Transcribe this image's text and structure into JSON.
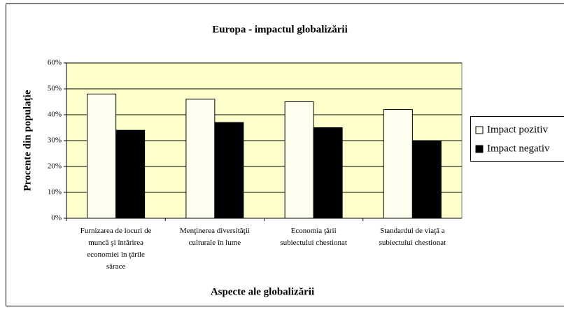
{
  "chart_data": {
    "type": "bar",
    "title": "Europa - impactul globalizării",
    "x_label": "Aspecte ale globalizării",
    "y_label": "Procente din populație",
    "categories": [
      "Furnizarea de locuri de muncă şi întărirea economiei în ţările sărace",
      "Menţinerea diversităţii culturale în lume",
      "Economia ţării subiectului chestionat",
      "Standardul de viaţă a subiectului chestionat"
    ],
    "series": [
      {
        "name": "Impact pozitiv",
        "color": "#fffff0",
        "values": [
          48,
          46,
          45,
          42
        ]
      },
      {
        "name": "Impact negativ",
        "color": "#000000",
        "values": [
          34,
          37,
          35,
          30
        ]
      }
    ],
    "ylim": [
      0,
      60
    ],
    "yticks": [
      {
        "value": 0,
        "label": "0%"
      },
      {
        "value": 10,
        "label": "10%"
      },
      {
        "value": 20,
        "label": "20%"
      },
      {
        "value": 30,
        "label": "30%"
      },
      {
        "value": 40,
        "label": "40%"
      },
      {
        "value": 50,
        "label": "50%"
      },
      {
        "value": 60,
        "label": "60%"
      }
    ],
    "grid": true,
    "plot_background": "#ffffcc",
    "legend": "right"
  }
}
